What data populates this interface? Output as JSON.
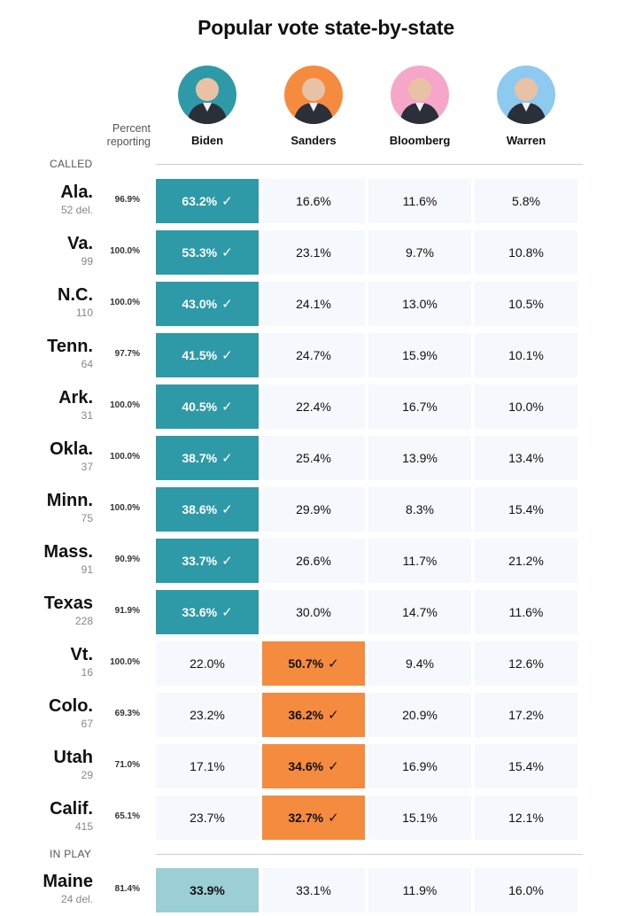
{
  "title": "Popular vote state-by-state",
  "percent_header": [
    "Percent",
    "reporting"
  ],
  "sections": {
    "called": "CALLED",
    "in_play": "IN PLAY"
  },
  "candidates": [
    {
      "name": "Biden",
      "avatar_bg": "#2f9aa7",
      "icon": "biden-avatar-icon"
    },
    {
      "name": "Sanders",
      "avatar_bg": "#f58b3f",
      "icon": "sanders-avatar-icon"
    },
    {
      "name": "Bloomberg",
      "avatar_bg": "#f6a6c9",
      "icon": "bloomberg-avatar-icon"
    },
    {
      "name": "Warren",
      "avatar_bg": "#8ec9ef",
      "icon": "warren-avatar-icon"
    }
  ],
  "colors": {
    "biden_win": "#2f9aa7",
    "sanders_win": "#f58b3f",
    "biden_lead": "#9bcfd5",
    "cell_bg": "#f5f8fc"
  },
  "check_mark": "✓",
  "chart_data": {
    "type": "table",
    "title": "Popular vote state-by-state",
    "columns": [
      "Percent reporting",
      "Biden",
      "Sanders",
      "Bloomberg",
      "Warren"
    ],
    "called": [
      {
        "state": "Ala.",
        "delegates": "52 del.",
        "reporting": "96.9%",
        "values": [
          "63.2%",
          "16.6%",
          "11.6%",
          "5.8%"
        ],
        "winner": 0
      },
      {
        "state": "Va.",
        "delegates": "99",
        "reporting": "100.0%",
        "values": [
          "53.3%",
          "23.1%",
          "9.7%",
          "10.8%"
        ],
        "winner": 0
      },
      {
        "state": "N.C.",
        "delegates": "110",
        "reporting": "100.0%",
        "values": [
          "43.0%",
          "24.1%",
          "13.0%",
          "10.5%"
        ],
        "winner": 0
      },
      {
        "state": "Tenn.",
        "delegates": "64",
        "reporting": "97.7%",
        "values": [
          "41.5%",
          "24.7%",
          "15.9%",
          "10.1%"
        ],
        "winner": 0
      },
      {
        "state": "Ark.",
        "delegates": "31",
        "reporting": "100.0%",
        "values": [
          "40.5%",
          "22.4%",
          "16.7%",
          "10.0%"
        ],
        "winner": 0
      },
      {
        "state": "Okla.",
        "delegates": "37",
        "reporting": "100.0%",
        "values": [
          "38.7%",
          "25.4%",
          "13.9%",
          "13.4%"
        ],
        "winner": 0
      },
      {
        "state": "Minn.",
        "delegates": "75",
        "reporting": "100.0%",
        "values": [
          "38.6%",
          "29.9%",
          "8.3%",
          "15.4%"
        ],
        "winner": 0
      },
      {
        "state": "Mass.",
        "delegates": "91",
        "reporting": "90.9%",
        "values": [
          "33.7%",
          "26.6%",
          "11.7%",
          "21.2%"
        ],
        "winner": 0
      },
      {
        "state": "Texas",
        "delegates": "228",
        "reporting": "91.9%",
        "values": [
          "33.6%",
          "30.0%",
          "14.7%",
          "11.6%"
        ],
        "winner": 0
      },
      {
        "state": "Vt.",
        "delegates": "16",
        "reporting": "100.0%",
        "values": [
          "22.0%",
          "50.7%",
          "9.4%",
          "12.6%"
        ],
        "winner": 1
      },
      {
        "state": "Colo.",
        "delegates": "67",
        "reporting": "69.3%",
        "values": [
          "23.2%",
          "36.2%",
          "20.9%",
          "17.2%"
        ],
        "winner": 1
      },
      {
        "state": "Utah",
        "delegates": "29",
        "reporting": "71.0%",
        "values": [
          "17.1%",
          "34.6%",
          "16.9%",
          "15.4%"
        ],
        "winner": 1
      },
      {
        "state": "Calif.",
        "delegates": "415",
        "reporting": "65.1%",
        "values": [
          "23.7%",
          "32.7%",
          "15.1%",
          "12.1%"
        ],
        "winner": 1
      }
    ],
    "in_play": [
      {
        "state": "Maine",
        "delegates": "24 del.",
        "reporting": "81.4%",
        "values": [
          "33.9%",
          "33.1%",
          "11.9%",
          "16.0%"
        ],
        "leader": 0
      }
    ]
  }
}
